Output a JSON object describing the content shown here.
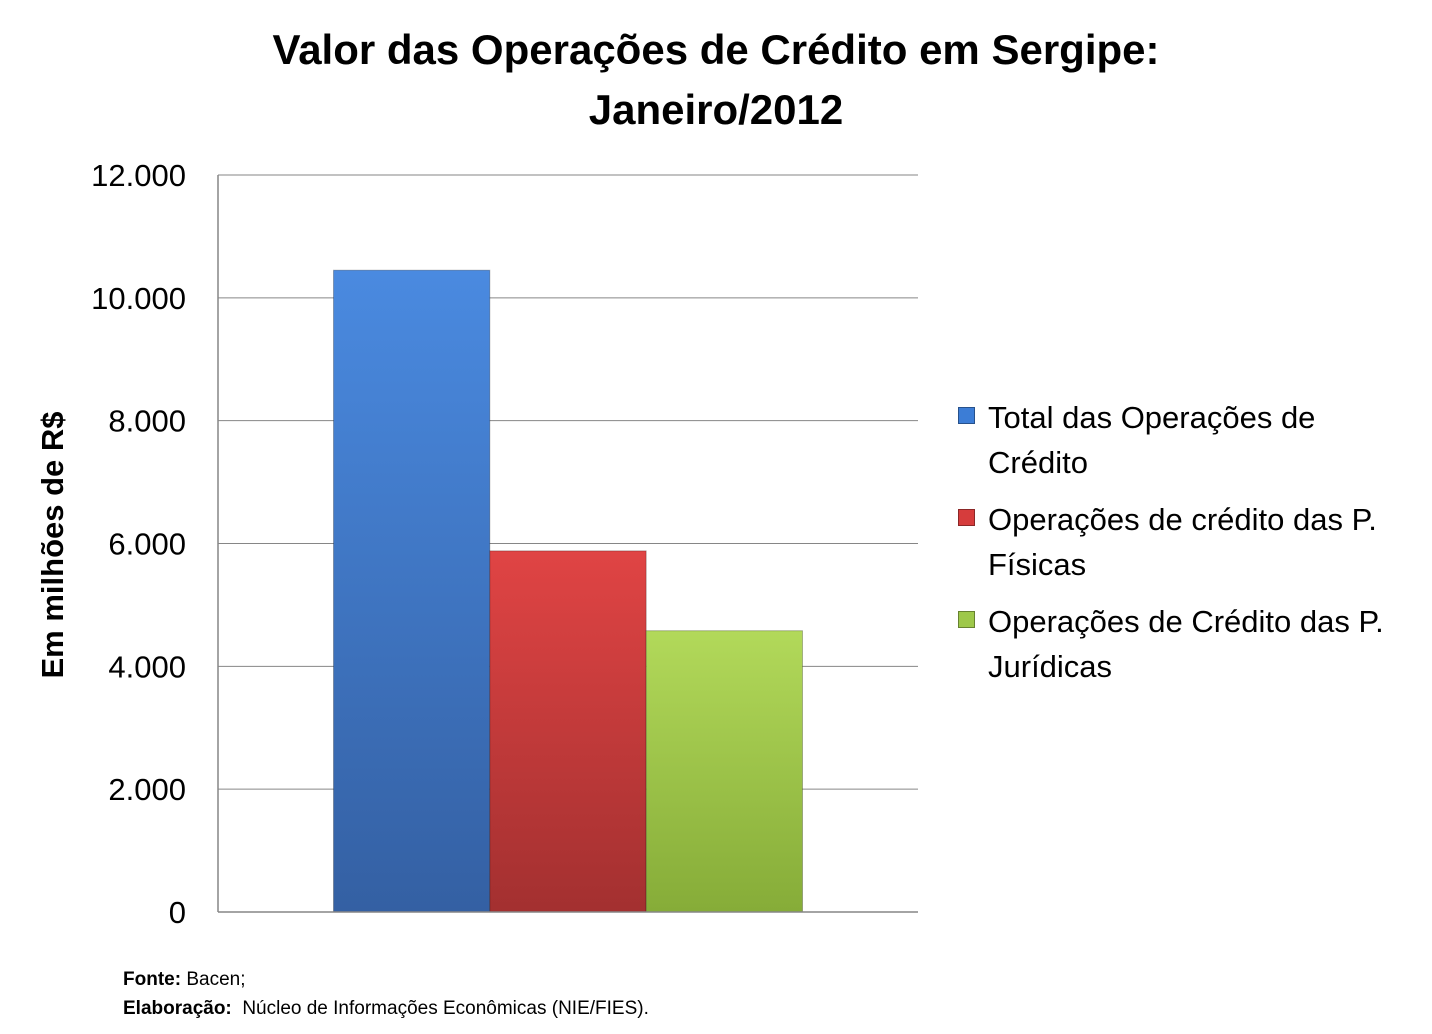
{
  "chart_data": {
    "type": "bar",
    "title": "Valor das Operações de Crédito em Sergipe:",
    "subtitle": "Janeiro/2012",
    "ylabel": "Em milhões de R$",
    "xlabel": "",
    "ylim": [
      0,
      12000
    ],
    "yticks": [
      "0",
      "2.000",
      "4.000",
      "6.000",
      "8.000",
      "10.000",
      "12.000"
    ],
    "grid": true,
    "legend_position": "right",
    "series": [
      {
        "name": "Total das Operações de Crédito",
        "legend_lines": [
          "Total das Operações de",
          "Crédito"
        ],
        "value": 10450,
        "color": "#3c7dd6"
      },
      {
        "name": "Operações de crédito das P. Físicas",
        "legend_lines": [
          "Operações de crédito das P.",
          "Físicas"
        ],
        "value": 5880,
        "color": "#d63c3c"
      },
      {
        "name": "Operações de Crédito das P. Jurídicas",
        "legend_lines": [
          "Operações de Crédito das P.",
          "Jurídicas"
        ],
        "value": 4580,
        "color": "#9ec84a"
      }
    ]
  },
  "footer": {
    "source_label": "Fonte:",
    "source_value": " Bacen;",
    "credit_label": "Elaboração:",
    "credit_value": "  Núcleo de Informações Econômicas (NIE/FIES)."
  }
}
